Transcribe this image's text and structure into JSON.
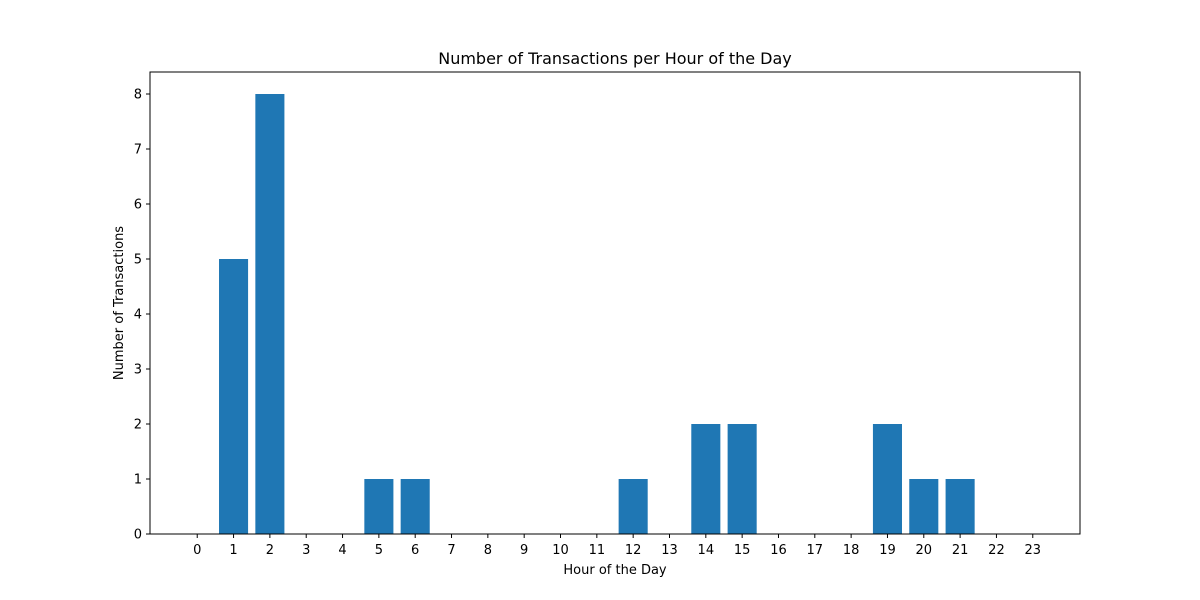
{
  "chart_data": {
    "type": "bar",
    "title": "Number of Transactions per Hour of the Day",
    "xlabel": "Hour of the Day",
    "ylabel": "Number of Transactions",
    "categories": [
      0,
      1,
      2,
      3,
      4,
      5,
      6,
      7,
      8,
      9,
      10,
      11,
      12,
      13,
      14,
      15,
      16,
      17,
      18,
      19,
      20,
      21,
      22,
      23
    ],
    "values": [
      0,
      5,
      8,
      0,
      0,
      1,
      1,
      0,
      0,
      0,
      0,
      0,
      1,
      0,
      2,
      2,
      0,
      0,
      0,
      2,
      1,
      1,
      0,
      0
    ],
    "ylim": [
      0,
      8.4
    ],
    "yticks": [
      0,
      1,
      2,
      3,
      4,
      5,
      6,
      7,
      8
    ],
    "bar_color": "#1f77b4",
    "grid": false,
    "legend": "none"
  }
}
